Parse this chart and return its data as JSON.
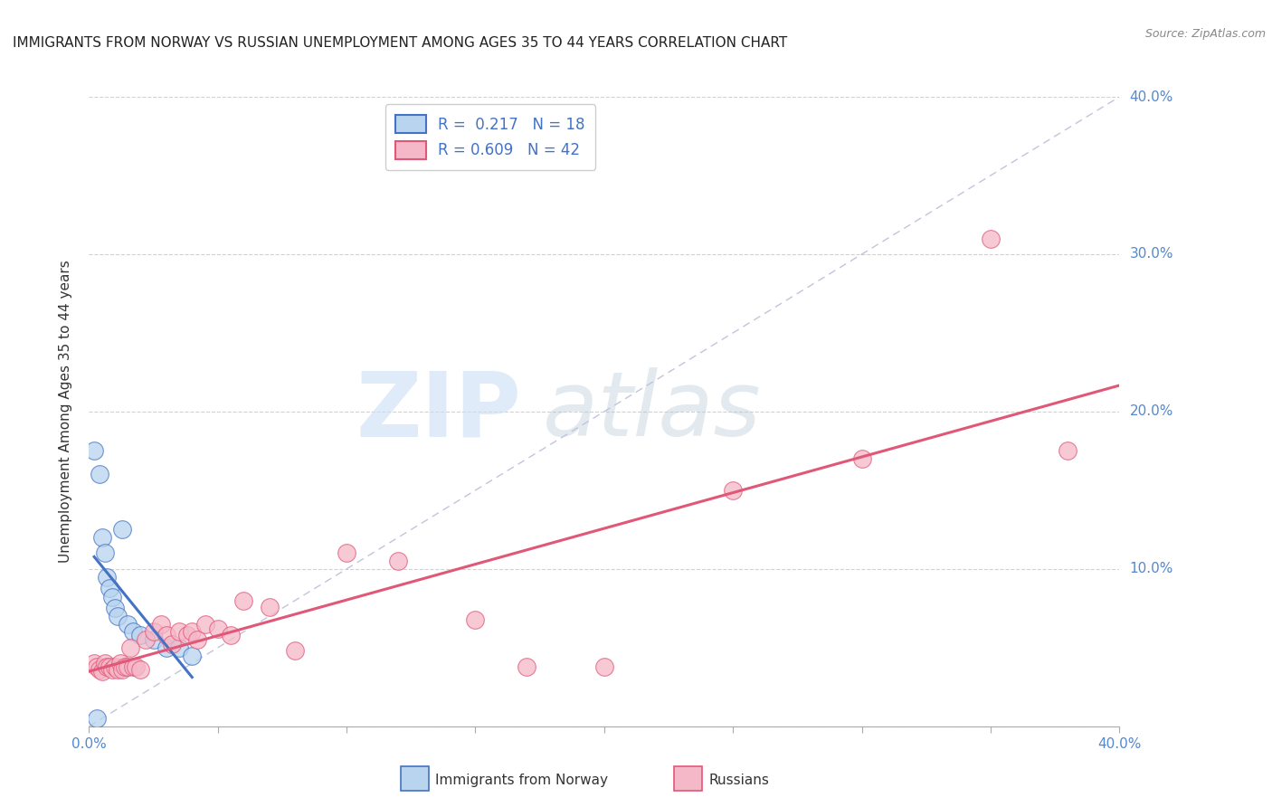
{
  "title": "IMMIGRANTS FROM NORWAY VS RUSSIAN UNEMPLOYMENT AMONG AGES 35 TO 44 YEARS CORRELATION CHART",
  "source": "Source: ZipAtlas.com",
  "ylabel": "Unemployment Among Ages 35 to 44 years",
  "xlim": [
    0.0,
    0.4
  ],
  "ylim": [
    0.0,
    0.4
  ],
  "norway_color": "#b8d4ee",
  "russia_color": "#f5b8c8",
  "norway_line_color": "#4472c4",
  "russia_line_color": "#e05878",
  "norway_R": 0.217,
  "norway_N": 18,
  "russia_R": 0.609,
  "russia_N": 42,
  "norway_x": [
    0.002,
    0.004,
    0.005,
    0.006,
    0.007,
    0.008,
    0.009,
    0.01,
    0.011,
    0.013,
    0.015,
    0.017,
    0.02,
    0.025,
    0.03,
    0.035,
    0.04,
    0.003
  ],
  "norway_y": [
    0.175,
    0.16,
    0.12,
    0.11,
    0.095,
    0.088,
    0.082,
    0.075,
    0.07,
    0.125,
    0.065,
    0.06,
    0.058,
    0.055,
    0.05,
    0.05,
    0.045,
    0.005
  ],
  "russia_x": [
    0.002,
    0.003,
    0.004,
    0.005,
    0.006,
    0.007,
    0.008,
    0.009,
    0.01,
    0.011,
    0.012,
    0.013,
    0.014,
    0.015,
    0.016,
    0.017,
    0.018,
    0.02,
    0.022,
    0.025,
    0.028,
    0.03,
    0.032,
    0.035,
    0.038,
    0.04,
    0.042,
    0.045,
    0.05,
    0.055,
    0.06,
    0.07,
    0.08,
    0.1,
    0.12,
    0.15,
    0.17,
    0.2,
    0.25,
    0.3,
    0.35,
    0.38
  ],
  "russia_y": [
    0.04,
    0.038,
    0.036,
    0.035,
    0.04,
    0.038,
    0.038,
    0.036,
    0.038,
    0.036,
    0.04,
    0.036,
    0.038,
    0.038,
    0.05,
    0.038,
    0.038,
    0.036,
    0.055,
    0.06,
    0.065,
    0.058,
    0.052,
    0.06,
    0.058,
    0.06,
    0.055,
    0.065,
    0.062,
    0.058,
    0.08,
    0.076,
    0.048,
    0.11,
    0.105,
    0.068,
    0.038,
    0.038,
    0.15,
    0.17,
    0.31,
    0.175
  ],
  "watermark_zip": "ZIP",
  "watermark_atlas": "atlas",
  "background_color": "#ffffff"
}
